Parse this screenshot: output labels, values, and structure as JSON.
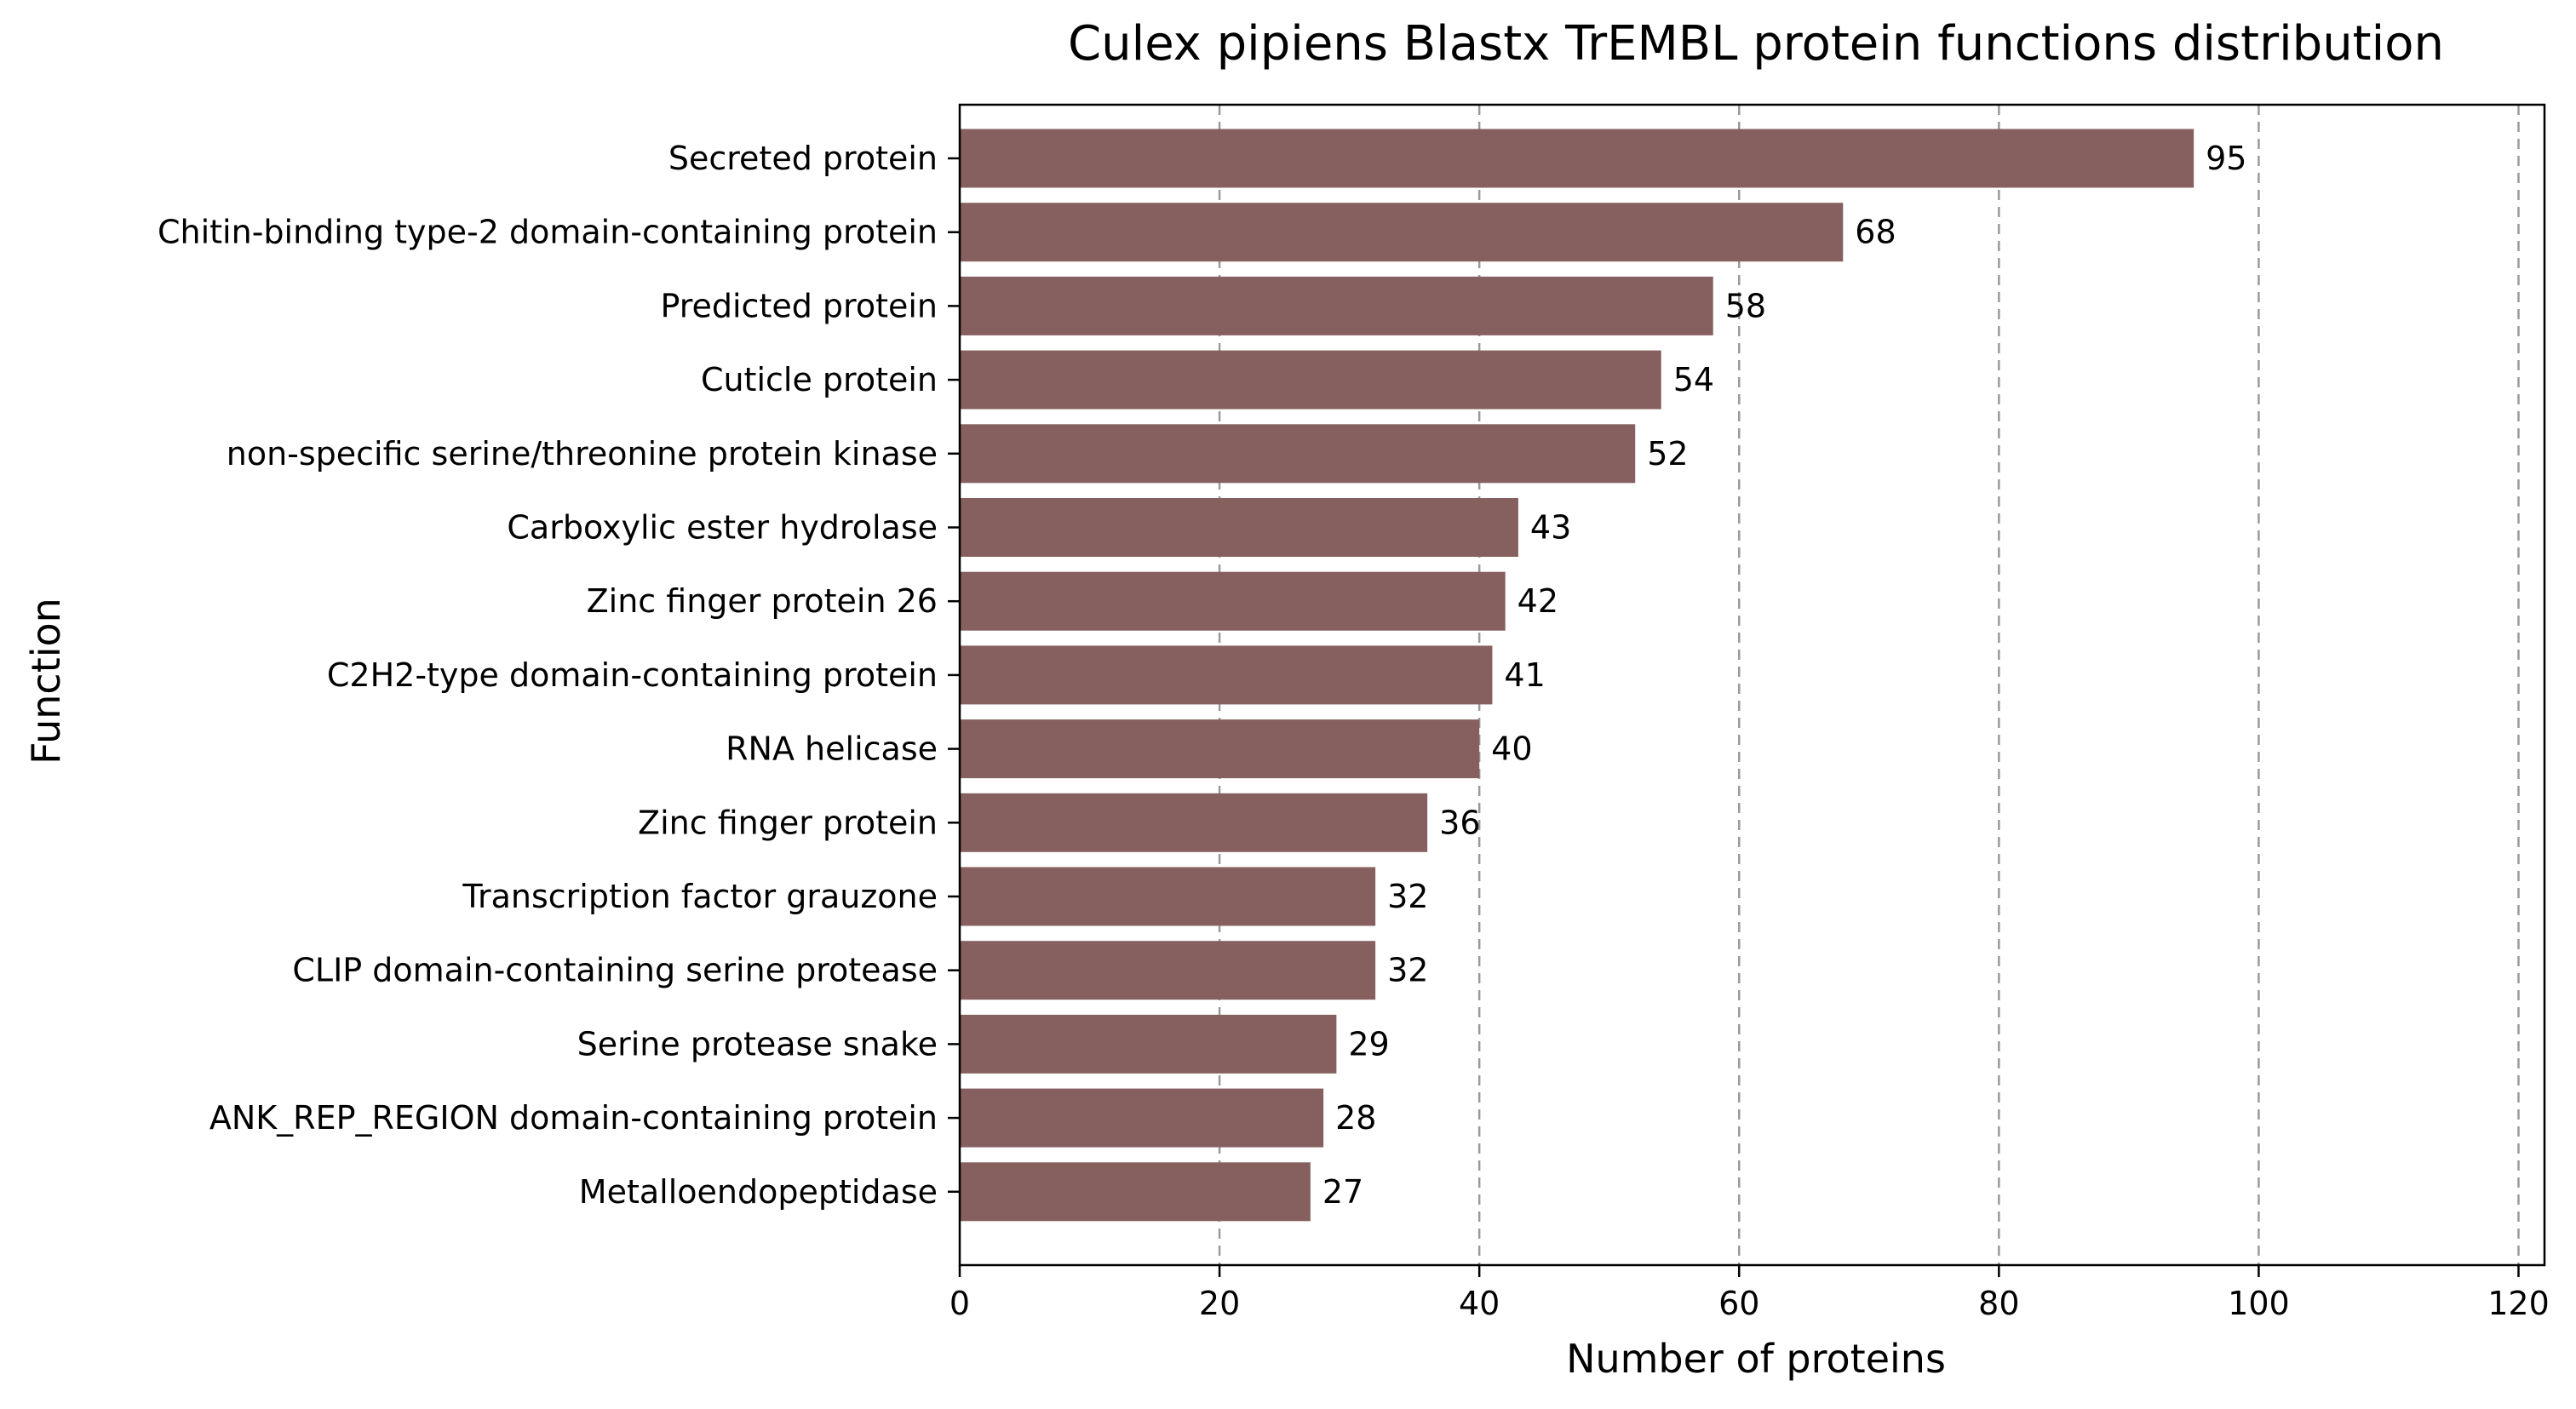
{
  "chart_data": {
    "type": "bar",
    "orientation": "horizontal",
    "title": "Culex pipiens Blastx TrEMBL protein functions distribution",
    "xlabel": "Number of proteins",
    "ylabel": "Function",
    "categories": [
      "Secreted protein",
      "Chitin-binding type-2 domain-containing protein",
      "Predicted protein",
      "Cuticle protein",
      "non-specific serine/threonine protein kinase",
      "Carboxylic ester hydrolase",
      "Zinc finger protein 26",
      "C2H2-type domain-containing protein",
      "RNA helicase",
      "Zinc finger protein",
      "Transcription factor grauzone",
      "CLIP domain-containing serine protease",
      "Serine protease snake",
      "ANK_REP_REGION domain-containing protein",
      "Metalloendopeptidase"
    ],
    "values": [
      95,
      68,
      58,
      54,
      52,
      43,
      42,
      41,
      40,
      36,
      32,
      32,
      29,
      28,
      27
    ],
    "xlim": [
      0,
      122
    ],
    "xticks": [
      0,
      20,
      40,
      60,
      80,
      100,
      120
    ],
    "grid": "x, dashed",
    "bar_color": "#86605e",
    "data_labels": true
  }
}
